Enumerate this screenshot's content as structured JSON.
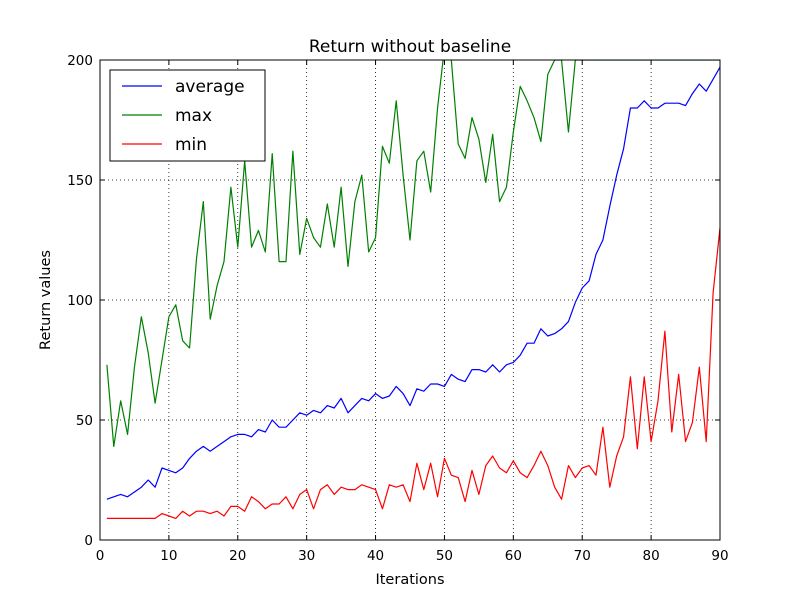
{
  "chart_data": {
    "type": "line",
    "title": "Return without baseline",
    "xlabel": "Iterations",
    "ylabel": "Return values",
    "xlim": [
      0,
      90
    ],
    "ylim": [
      0,
      200
    ],
    "xticks": [
      "0",
      "10",
      "20",
      "30",
      "40",
      "50",
      "60",
      "70",
      "80",
      "90"
    ],
    "yticks": [
      "0",
      "50",
      "100",
      "150",
      "200"
    ],
    "grid": true,
    "legend_position": "top-left",
    "x": [
      1,
      2,
      3,
      4,
      5,
      6,
      7,
      8,
      9,
      10,
      11,
      12,
      13,
      14,
      15,
      16,
      17,
      18,
      19,
      20,
      21,
      22,
      23,
      24,
      25,
      26,
      27,
      28,
      29,
      30,
      31,
      32,
      33,
      34,
      35,
      36,
      37,
      38,
      39,
      40,
      41,
      42,
      43,
      44,
      45,
      46,
      47,
      48,
      49,
      50,
      51,
      52,
      53,
      54,
      55,
      56,
      57,
      58,
      59,
      60,
      61,
      62,
      63,
      64,
      65,
      66,
      67,
      68,
      69,
      70,
      71,
      72,
      73,
      74,
      75,
      76,
      77,
      78,
      79,
      80,
      81,
      82,
      83,
      84,
      85,
      86,
      87,
      88,
      89,
      90
    ],
    "series": [
      {
        "name": "average",
        "color": "#0000ff",
        "values": [
          17,
          18,
          19,
          18,
          20,
          22,
          25,
          22,
          30,
          29,
          28,
          30,
          34,
          37,
          39,
          37,
          39,
          41,
          43,
          44,
          44,
          43,
          46,
          45,
          50,
          47,
          47,
          50,
          53,
          52,
          54,
          53,
          56,
          55,
          59,
          53,
          56,
          59,
          58,
          61,
          59,
          60,
          64,
          61,
          56,
          63,
          62,
          65,
          65,
          64,
          69,
          67,
          66,
          71,
          71,
          70,
          73,
          70,
          73,
          74,
          77,
          82,
          82,
          88,
          85,
          86,
          88,
          91,
          99,
          105,
          108,
          119,
          125,
          139,
          152,
          163,
          180,
          180,
          183,
          180,
          180,
          182,
          182,
          182,
          181,
          186,
          190,
          187,
          192,
          197
        ]
      },
      {
        "name": "max",
        "color": "#008000",
        "values": [
          73,
          39,
          58,
          44,
          72,
          93,
          78,
          57,
          75,
          93,
          98,
          83,
          80,
          117,
          141,
          92,
          106,
          116,
          147,
          122,
          158,
          122,
          129,
          120,
          161,
          116,
          116,
          162,
          119,
          134,
          126,
          122,
          140,
          122,
          147,
          114,
          141,
          152,
          120,
          126,
          164,
          157,
          183,
          152,
          125,
          158,
          162,
          145,
          180,
          205,
          200,
          165,
          159,
          176,
          167,
          149,
          169,
          141,
          147,
          170,
          189,
          183,
          176,
          166,
          194,
          200,
          200,
          170,
          200,
          200,
          200,
          200,
          200,
          200,
          200,
          200,
          200,
          200,
          200,
          200,
          200,
          200,
          200,
          200,
          200,
          200,
          200,
          200,
          200,
          200
        ]
      },
      {
        "name": "min",
        "color": "#ff0000",
        "values": [
          9,
          9,
          9,
          9,
          9,
          9,
          9,
          9,
          11,
          10,
          9,
          12,
          10,
          12,
          12,
          11,
          12,
          10,
          14,
          14,
          12,
          18,
          16,
          13,
          15,
          15,
          18,
          13,
          19,
          21,
          13,
          21,
          23,
          19,
          22,
          21,
          21,
          23,
          22,
          21,
          13,
          23,
          22,
          23,
          16,
          32,
          21,
          32,
          18,
          34,
          27,
          26,
          16,
          29,
          19,
          31,
          35,
          30,
          28,
          33,
          28,
          26,
          31,
          37,
          31,
          22,
          17,
          31,
          26,
          30,
          31,
          27,
          47,
          22,
          35,
          43,
          68,
          38,
          68,
          41,
          58,
          87,
          45,
          69,
          41,
          49,
          72,
          41,
          103,
          130
        ]
      }
    ]
  }
}
